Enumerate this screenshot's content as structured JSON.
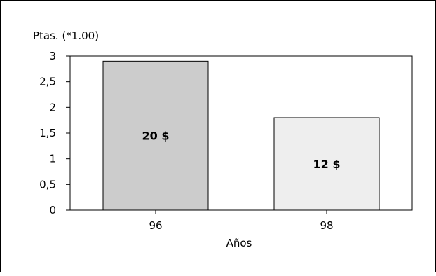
{
  "chart_data": {
    "type": "bar",
    "title": "",
    "ylabel": "Ptas. (*1.00)",
    "xlabel": "Años",
    "categories": [
      "96",
      "98"
    ],
    "values": [
      2.9,
      1.8
    ],
    "bar_labels": [
      "20 $",
      "12 $"
    ],
    "bar_colors": [
      "#cccccc",
      "#eeeeee"
    ],
    "ylim": [
      0,
      3
    ],
    "yticks": [
      0,
      0.5,
      1,
      1.5,
      2,
      2.5,
      3
    ],
    "ytick_labels": [
      "0",
      "0,5",
      "1",
      "1,5",
      "2",
      "2,5",
      "3"
    ],
    "grid": false,
    "legend": false
  }
}
